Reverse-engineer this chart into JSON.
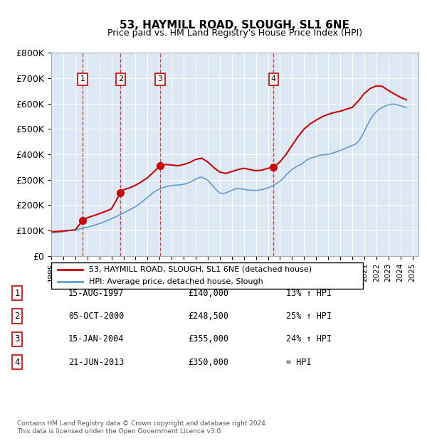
{
  "title": "53, HAYMILL ROAD, SLOUGH, SL1 6NE",
  "subtitle": "Price paid vs. HM Land Registry's House Price Index (HPI)",
  "background_color": "#dce9f5",
  "plot_bg_color": "#dce9f5",
  "ylabel": "",
  "ylim": [
    0,
    800000
  ],
  "yticks": [
    0,
    100000,
    200000,
    300000,
    400000,
    500000,
    600000,
    700000,
    800000
  ],
  "ytick_labels": [
    "£0",
    "£100K",
    "£200K",
    "£300K",
    "£400K",
    "£500K",
    "£600K",
    "£700K",
    "£800K"
  ],
  "xlim_start": 1995.0,
  "xlim_end": 2025.5,
  "hpi_line_color": "#6699cc",
  "price_line_color": "#cc0000",
  "transactions": [
    {
      "year": 1997.62,
      "price": 140000,
      "label": "1"
    },
    {
      "year": 2000.76,
      "price": 248500,
      "label": "2"
    },
    {
      "year": 2004.04,
      "price": 355000,
      "label": "3"
    },
    {
      "year": 2013.47,
      "price": 350000,
      "label": "4"
    }
  ],
  "hpi_data_x": [
    1995,
    1995.25,
    1995.5,
    1995.75,
    1996,
    1996.25,
    1996.5,
    1996.75,
    1997,
    1997.25,
    1997.5,
    1997.75,
    1998,
    1998.25,
    1998.5,
    1998.75,
    1999,
    1999.25,
    1999.5,
    1999.75,
    2000,
    2000.25,
    2000.5,
    2000.75,
    2001,
    2001.25,
    2001.5,
    2001.75,
    2002,
    2002.25,
    2002.5,
    2002.75,
    2003,
    2003.25,
    2003.5,
    2003.75,
    2004,
    2004.25,
    2004.5,
    2004.75,
    2005,
    2005.25,
    2005.5,
    2005.75,
    2006,
    2006.25,
    2006.5,
    2006.75,
    2007,
    2007.25,
    2007.5,
    2007.75,
    2008,
    2008.25,
    2008.5,
    2008.75,
    2009,
    2009.25,
    2009.5,
    2009.75,
    2010,
    2010.25,
    2010.5,
    2010.75,
    2011,
    2011.25,
    2011.5,
    2011.75,
    2012,
    2012.25,
    2012.5,
    2012.75,
    2013,
    2013.25,
    2013.5,
    2013.75,
    2014,
    2014.25,
    2014.5,
    2014.75,
    2015,
    2015.25,
    2015.5,
    2015.75,
    2016,
    2016.25,
    2016.5,
    2016.75,
    2017,
    2017.25,
    2017.5,
    2017.75,
    2018,
    2018.25,
    2018.5,
    2018.75,
    2019,
    2019.25,
    2019.5,
    2019.75,
    2020,
    2020.25,
    2020.5,
    2020.75,
    2021,
    2021.25,
    2021.5,
    2021.75,
    2022,
    2022.25,
    2022.5,
    2022.75,
    2023,
    2023.25,
    2023.5,
    2023.75,
    2024,
    2024.25,
    2024.5
  ],
  "hpi_data_y": [
    90000,
    91000,
    92000,
    93000,
    95000,
    97000,
    99000,
    101000,
    103000,
    105000,
    107000,
    110000,
    113000,
    116000,
    119000,
    123000,
    127000,
    131000,
    136000,
    141000,
    146000,
    151000,
    157000,
    163000,
    169000,
    175000,
    181000,
    187000,
    194000,
    202000,
    211000,
    221000,
    230000,
    240000,
    250000,
    258000,
    263000,
    268000,
    272000,
    275000,
    277000,
    278000,
    279000,
    280000,
    282000,
    285000,
    290000,
    296000,
    302000,
    308000,
    310000,
    305000,
    298000,
    285000,
    272000,
    258000,
    248000,
    245000,
    248000,
    253000,
    258000,
    263000,
    265000,
    264000,
    262000,
    260000,
    259000,
    258000,
    258000,
    259000,
    261000,
    264000,
    268000,
    273000,
    279000,
    286000,
    294000,
    305000,
    318000,
    330000,
    340000,
    348000,
    355000,
    360000,
    370000,
    378000,
    384000,
    388000,
    392000,
    396000,
    398000,
    398000,
    400000,
    403000,
    407000,
    411000,
    415000,
    420000,
    425000,
    430000,
    435000,
    440000,
    450000,
    468000,
    490000,
    515000,
    537000,
    555000,
    568000,
    578000,
    585000,
    590000,
    595000,
    598000,
    598000,
    595000,
    592000,
    588000,
    585000
  ],
  "price_data_x": [
    1995,
    1995.5,
    1996,
    1996.5,
    1997,
    1997.62,
    1998,
    1998.5,
    1999,
    1999.5,
    2000,
    2000.76,
    2001,
    2001.5,
    2002,
    2002.5,
    2003,
    2003.5,
    2004.04,
    2004.5,
    2005,
    2005.5,
    2006,
    2006.5,
    2007,
    2007.5,
    2008,
    2008.5,
    2009,
    2009.5,
    2010,
    2010.5,
    2011,
    2011.5,
    2012,
    2012.5,
    2013,
    2013.47,
    2014,
    2014.5,
    2015,
    2015.5,
    2016,
    2016.5,
    2017,
    2017.5,
    2018,
    2018.5,
    2019,
    2019.5,
    2020,
    2020.5,
    2021,
    2021.5,
    2022,
    2022.5,
    2023,
    2023.5,
    2024,
    2024.5
  ],
  "price_data_y": [
    95000,
    96000,
    98000,
    100000,
    102000,
    140000,
    150000,
    158000,
    166000,
    175000,
    185000,
    248500,
    260000,
    268000,
    278000,
    292000,
    308000,
    330000,
    355000,
    360000,
    358000,
    355000,
    360000,
    368000,
    380000,
    385000,
    370000,
    348000,
    330000,
    325000,
    332000,
    340000,
    345000,
    340000,
    335000,
    338000,
    345000,
    350000,
    370000,
    400000,
    435000,
    470000,
    500000,
    520000,
    535000,
    548000,
    558000,
    565000,
    570000,
    578000,
    585000,
    610000,
    640000,
    660000,
    670000,
    668000,
    652000,
    638000,
    625000,
    615000
  ],
  "xtick_years": [
    1995,
    1996,
    1997,
    1998,
    1999,
    2000,
    2001,
    2002,
    2003,
    2004,
    2005,
    2006,
    2007,
    2008,
    2009,
    2010,
    2011,
    2012,
    2013,
    2014,
    2015,
    2016,
    2017,
    2018,
    2019,
    2020,
    2021,
    2022,
    2023,
    2024,
    2025
  ],
  "legend_line1": "53, HAYMILL ROAD, SLOUGH, SL1 6NE (detached house)",
  "legend_line2": "HPI: Average price, detached house, Slough",
  "table_rows": [
    {
      "num": "1",
      "date": "15-AUG-1997",
      "price": "£140,000",
      "change": "13% ↑ HPI"
    },
    {
      "num": "2",
      "date": "05-OCT-2000",
      "price": "£248,500",
      "change": "25% ↑ HPI"
    },
    {
      "num": "3",
      "date": "15-JAN-2004",
      "price": "£355,000",
      "change": "24% ↑ HPI"
    },
    {
      "num": "4",
      "date": "21-JUN-2013",
      "price": "£350,000",
      "change": "≈ HPI"
    }
  ],
  "footer": "Contains HM Land Registry data © Crown copyright and database right 2024.\nThis data is licensed under the Open Government Licence v3.0."
}
